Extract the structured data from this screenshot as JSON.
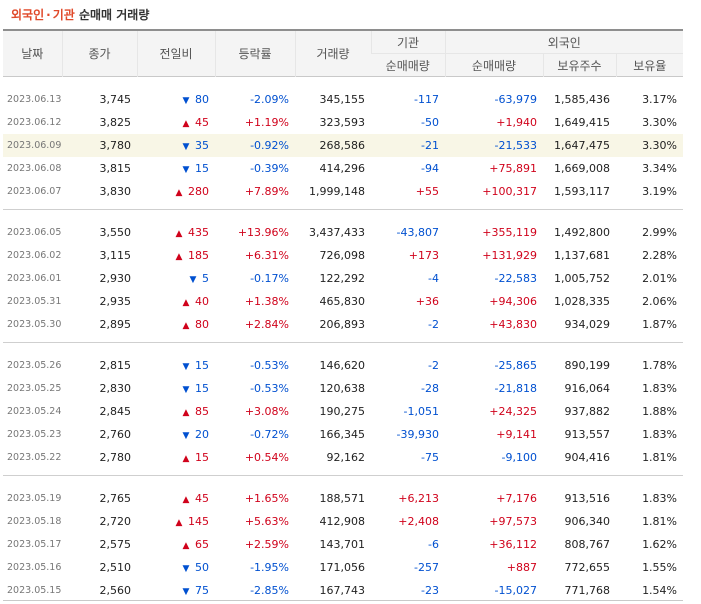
{
  "title": {
    "part1": "외국인",
    "sep": "·",
    "part2": "기관",
    "part3": "순매매 거래량"
  },
  "headers": {
    "date": "날짜",
    "close": "종가",
    "change": "전일비",
    "rate": "등락률",
    "volume": "거래량",
    "inst": "기관",
    "foreign": "외국인",
    "inst_net": "순매매량",
    "foreign_net": "순매매량",
    "foreign_shares": "보유주수",
    "foreign_ratio": "보유율"
  },
  "groups": [
    [
      {
        "date": "2023.06.13",
        "close": "3,745",
        "dir": "down",
        "diff": "80",
        "rate": "-2.09%",
        "volume": "345,155",
        "inst": "-117",
        "foreign": "-63,979",
        "shares": "1,585,436",
        "ratio": "3.17%"
      },
      {
        "date": "2023.06.12",
        "close": "3,825",
        "dir": "up",
        "diff": "45",
        "rate": "+1.19%",
        "volume": "323,593",
        "inst": "-50",
        "foreign": "+1,940",
        "shares": "1,649,415",
        "ratio": "3.30%"
      },
      {
        "date": "2023.06.09",
        "close": "3,780",
        "dir": "down",
        "diff": "35",
        "rate": "-0.92%",
        "volume": "268,586",
        "inst": "-21",
        "foreign": "-21,533",
        "shares": "1,647,475",
        "ratio": "3.30%",
        "highlight": true
      },
      {
        "date": "2023.06.08",
        "close": "3,815",
        "dir": "down",
        "diff": "15",
        "rate": "-0.39%",
        "volume": "414,296",
        "inst": "-94",
        "foreign": "+75,891",
        "shares": "1,669,008",
        "ratio": "3.34%"
      },
      {
        "date": "2023.06.07",
        "close": "3,830",
        "dir": "up",
        "diff": "280",
        "rate": "+7.89%",
        "volume": "1,999,148",
        "inst": "+55",
        "foreign": "+100,317",
        "shares": "1,593,117",
        "ratio": "3.19%"
      }
    ],
    [
      {
        "date": "2023.06.05",
        "close": "3,550",
        "dir": "up",
        "diff": "435",
        "rate": "+13.96%",
        "volume": "3,437,433",
        "inst": "-43,807",
        "foreign": "+355,119",
        "shares": "1,492,800",
        "ratio": "2.99%"
      },
      {
        "date": "2023.06.02",
        "close": "3,115",
        "dir": "up",
        "diff": "185",
        "rate": "+6.31%",
        "volume": "726,098",
        "inst": "+173",
        "foreign": "+131,929",
        "shares": "1,137,681",
        "ratio": "2.28%"
      },
      {
        "date": "2023.06.01",
        "close": "2,930",
        "dir": "down",
        "diff": "5",
        "rate": "-0.17%",
        "volume": "122,292",
        "inst": "-4",
        "foreign": "-22,583",
        "shares": "1,005,752",
        "ratio": "2.01%"
      },
      {
        "date": "2023.05.31",
        "close": "2,935",
        "dir": "up",
        "diff": "40",
        "rate": "+1.38%",
        "volume": "465,830",
        "inst": "+36",
        "foreign": "+94,306",
        "shares": "1,028,335",
        "ratio": "2.06%"
      },
      {
        "date": "2023.05.30",
        "close": "2,895",
        "dir": "up",
        "diff": "80",
        "rate": "+2.84%",
        "volume": "206,893",
        "inst": "-2",
        "foreign": "+43,830",
        "shares": "934,029",
        "ratio": "1.87%"
      }
    ],
    [
      {
        "date": "2023.05.26",
        "close": "2,815",
        "dir": "down",
        "diff": "15",
        "rate": "-0.53%",
        "volume": "146,620",
        "inst": "-2",
        "foreign": "-25,865",
        "shares": "890,199",
        "ratio": "1.78%"
      },
      {
        "date": "2023.05.25",
        "close": "2,830",
        "dir": "down",
        "diff": "15",
        "rate": "-0.53%",
        "volume": "120,638",
        "inst": "-28",
        "foreign": "-21,818",
        "shares": "916,064",
        "ratio": "1.83%"
      },
      {
        "date": "2023.05.24",
        "close": "2,845",
        "dir": "up",
        "diff": "85",
        "rate": "+3.08%",
        "volume": "190,275",
        "inst": "-1,051",
        "foreign": "+24,325",
        "shares": "937,882",
        "ratio": "1.88%"
      },
      {
        "date": "2023.05.23",
        "close": "2,760",
        "dir": "down",
        "diff": "20",
        "rate": "-0.72%",
        "volume": "166,345",
        "inst": "-39,930",
        "foreign": "+9,141",
        "shares": "913,557",
        "ratio": "1.83%"
      },
      {
        "date": "2023.05.22",
        "close": "2,780",
        "dir": "up",
        "diff": "15",
        "rate": "+0.54%",
        "volume": "92,162",
        "inst": "-75",
        "foreign": "-9,100",
        "shares": "904,416",
        "ratio": "1.81%"
      }
    ],
    [
      {
        "date": "2023.05.19",
        "close": "2,765",
        "dir": "up",
        "diff": "45",
        "rate": "+1.65%",
        "volume": "188,571",
        "inst": "+6,213",
        "foreign": "+7,176",
        "shares": "913,516",
        "ratio": "1.83%"
      },
      {
        "date": "2023.05.18",
        "close": "2,720",
        "dir": "up",
        "diff": "145",
        "rate": "+5.63%",
        "volume": "412,908",
        "inst": "+2,408",
        "foreign": "+97,573",
        "shares": "906,340",
        "ratio": "1.81%"
      },
      {
        "date": "2023.05.17",
        "close": "2,575",
        "dir": "up",
        "diff": "65",
        "rate": "+2.59%",
        "volume": "143,701",
        "inst": "-6",
        "foreign": "+36,112",
        "shares": "808,767",
        "ratio": "1.62%"
      },
      {
        "date": "2023.05.16",
        "close": "2,510",
        "dir": "down",
        "diff": "50",
        "rate": "-1.95%",
        "volume": "171,056",
        "inst": "-257",
        "foreign": "+887",
        "shares": "772,655",
        "ratio": "1.55%"
      },
      {
        "date": "2023.05.15",
        "close": "2,560",
        "dir": "down",
        "diff": "75",
        "rate": "-2.85%",
        "volume": "167,743",
        "inst": "-23",
        "foreign": "-15,027",
        "shares": "771,768",
        "ratio": "1.54%"
      }
    ]
  ],
  "symbols": {
    "up": "▲",
    "down": "▼"
  },
  "colors": {
    "up": "#d0021b",
    "down": "#0050d0",
    "title_accent": "#e0492a",
    "highlight_row": "#f8f6e6"
  }
}
